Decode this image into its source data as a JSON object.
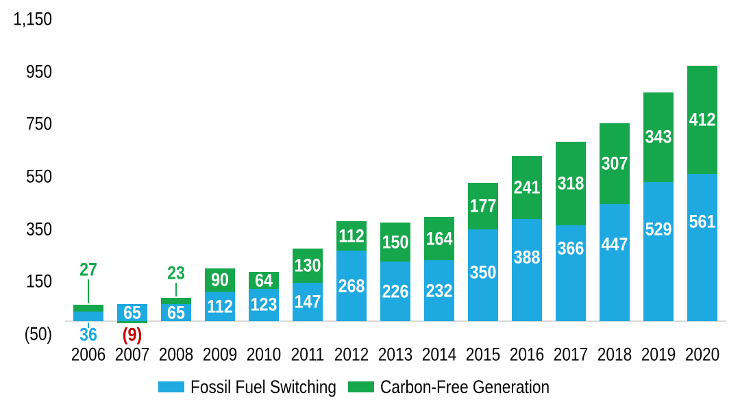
{
  "chart_data": {
    "type": "bar",
    "stacked": true,
    "title": "",
    "categories": [
      "2006",
      "2007",
      "2008",
      "2009",
      "2010",
      "2011",
      "2012",
      "2013",
      "2014",
      "2015",
      "2016",
      "2017",
      "2018",
      "2019",
      "2020"
    ],
    "series": [
      {
        "name": "Fossil Fuel Switching",
        "color": "#1EA9E0",
        "values": [
          36,
          65,
          65,
          112,
          123,
          147,
          268,
          226,
          232,
          350,
          388,
          366,
          447,
          529,
          561
        ],
        "labels": [
          "36",
          "65",
          "65",
          "112",
          "123",
          "147",
          "268",
          "226",
          "232",
          "350",
          "388",
          "366",
          "447",
          "529",
          "561"
        ],
        "label_placements": [
          "below-axis",
          "inside",
          "inside",
          "inside",
          "inside",
          "inside",
          "inside",
          "inside",
          "inside",
          "inside",
          "inside",
          "inside",
          "inside",
          "inside",
          "inside"
        ]
      },
      {
        "name": "Carbon-Free Generation",
        "color": "#16A74C",
        "values": [
          27,
          -9,
          23,
          90,
          64,
          130,
          112,
          150,
          164,
          177,
          241,
          318,
          307,
          343,
          412
        ],
        "labels": [
          "27",
          "(9)",
          "23",
          "90",
          "64",
          "130",
          "112",
          "150",
          "164",
          "177",
          "241",
          "318",
          "307",
          "343",
          "412"
        ],
        "label_placements": [
          "above",
          "below-axis",
          "above",
          "inside",
          "inside",
          "inside",
          "inside",
          "inside",
          "inside",
          "inside",
          "inside",
          "inside",
          "inside",
          "inside",
          "inside"
        ]
      }
    ],
    "yticks": [
      {
        "label": "1,150",
        "value": 1150
      },
      {
        "label": "950",
        "value": 950
      },
      {
        "label": "750",
        "value": 750
      },
      {
        "label": "550",
        "value": 550
      },
      {
        "label": "350",
        "value": 350
      },
      {
        "label": "150",
        "value": 150
      },
      {
        "label": "(50)",
        "value": -50
      }
    ],
    "ylim": [
      -50,
      1150
    ],
    "xlabel": "",
    "ylabel": "",
    "grid": false,
    "legend": {
      "position": "bottom",
      "entries": [
        {
          "label": "Fossil Fuel Switching",
          "color": "#1EA9E0"
        },
        {
          "label": "Carbon-Free Generation",
          "color": "#16A74C"
        }
      ]
    },
    "colors": {
      "negative_label": "#C00000",
      "bar_label_text": "#FFFFFF",
      "tick_text": "#000000",
      "axis_line": "#D9D9D9"
    }
  }
}
